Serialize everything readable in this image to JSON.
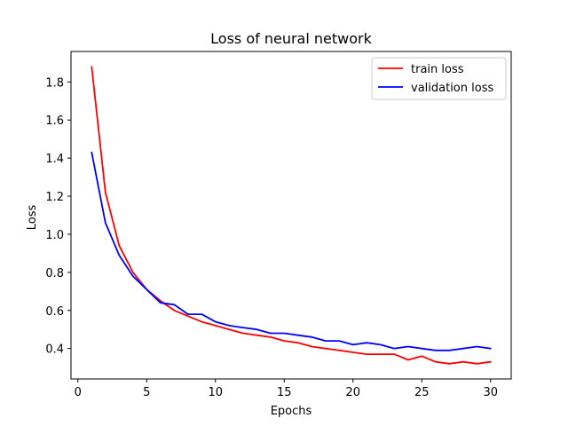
{
  "chart_data": {
    "type": "line",
    "title": "Loss of neural network",
    "xlabel": "Epochs",
    "ylabel": "Loss",
    "xlim": [
      -0.5,
      31.5
    ],
    "ylim": [
      0.24,
      1.96
    ],
    "xticks": [
      0,
      5,
      10,
      15,
      20,
      25,
      30
    ],
    "yticks": [
      0.4,
      0.6,
      0.8,
      1.0,
      1.2,
      1.4,
      1.6,
      1.8
    ],
    "ytick_labels": [
      "0.4",
      "0.6",
      "0.8",
      "1.0",
      "1.2",
      "1.4",
      "1.6",
      "1.8"
    ],
    "grid": false,
    "legend_position": "top-right",
    "x": [
      1,
      2,
      3,
      4,
      5,
      6,
      7,
      8,
      9,
      10,
      11,
      12,
      13,
      14,
      15,
      16,
      17,
      18,
      19,
      20,
      21,
      22,
      23,
      24,
      25,
      26,
      27,
      28,
      29,
      30
    ],
    "series": [
      {
        "name": "train loss",
        "color": "#ff0000",
        "values": [
          1.88,
          1.22,
          0.94,
          0.8,
          0.71,
          0.65,
          0.6,
          0.57,
          0.54,
          0.52,
          0.5,
          0.48,
          0.47,
          0.46,
          0.44,
          0.43,
          0.41,
          0.4,
          0.39,
          0.38,
          0.37,
          0.37,
          0.37,
          0.34,
          0.36,
          0.33,
          0.32,
          0.33,
          0.32,
          0.33
        ]
      },
      {
        "name": "validation loss",
        "color": "#0000ff",
        "values": [
          1.43,
          1.06,
          0.89,
          0.78,
          0.71,
          0.64,
          0.63,
          0.58,
          0.58,
          0.54,
          0.52,
          0.51,
          0.5,
          0.48,
          0.48,
          0.47,
          0.46,
          0.44,
          0.44,
          0.42,
          0.43,
          0.42,
          0.4,
          0.41,
          0.4,
          0.39,
          0.39,
          0.4,
          0.41,
          0.4
        ]
      }
    ]
  }
}
